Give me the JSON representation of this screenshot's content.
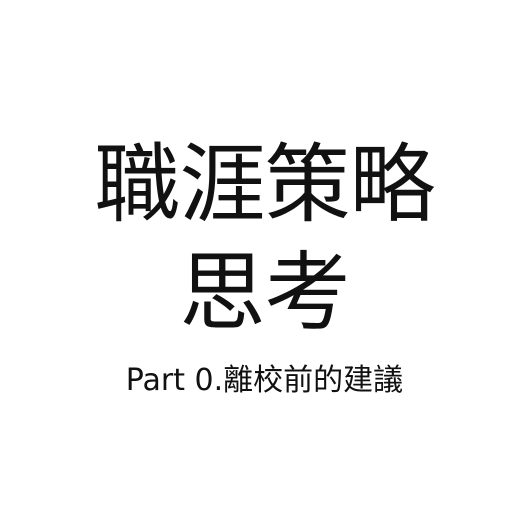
{
  "title": {
    "line1": "職涯策略",
    "line2": "思考"
  },
  "subtitle": "Part 0.離校前的建議",
  "colors": {
    "background": "#ffffff",
    "text": "#111111"
  }
}
